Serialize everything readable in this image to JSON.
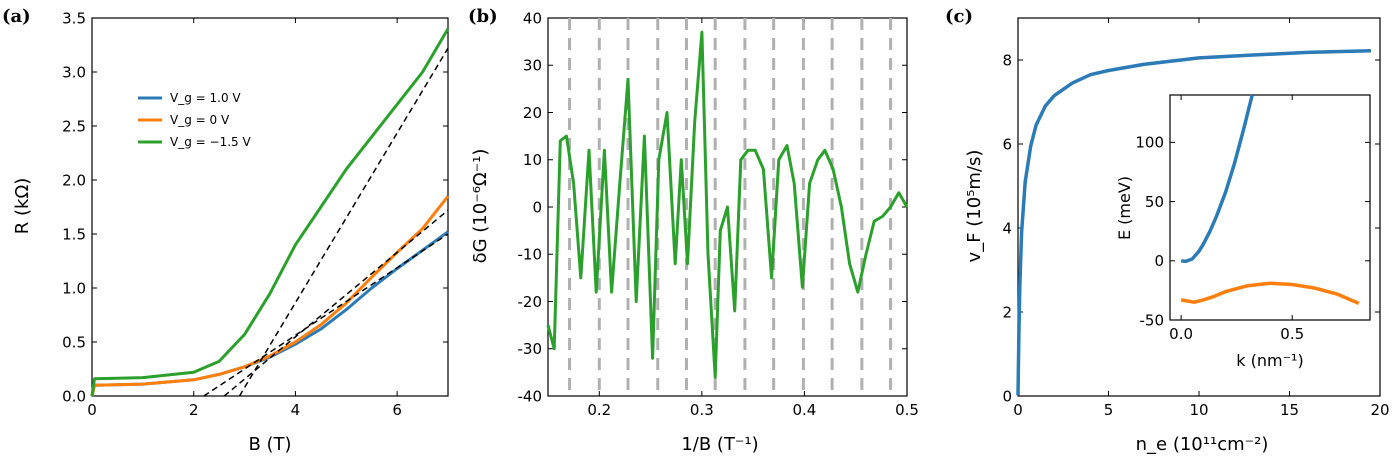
{
  "colors": {
    "blue": "#2c7bb6",
    "orange": "#ff7f0e",
    "green": "#2ca02c",
    "dashed": "#000000",
    "vline": "#b0b0b0"
  },
  "chart_data": [
    {
      "panel_label": "(a)",
      "type": "line",
      "xlabel": "B (T)",
      "ylabel": "R (kΩ)",
      "xlim": [
        0,
        7
      ],
      "ylim": [
        0,
        3.5
      ],
      "xticks": [
        0,
        2,
        4,
        6
      ],
      "yticks": [
        0.0,
        0.5,
        1.0,
        1.5,
        2.0,
        2.5,
        3.0,
        3.5
      ],
      "legend_location": "upper-left",
      "series": [
        {
          "name": "V_g = 1.0 V",
          "color": "blue",
          "x": [
            0,
            0.05,
            1,
            2,
            2.5,
            3,
            3.5,
            4,
            4.5,
            5,
            5.5,
            6,
            6.5,
            7
          ],
          "y": [
            0,
            0.1,
            0.11,
            0.15,
            0.2,
            0.27,
            0.36,
            0.48,
            0.62,
            0.8,
            1.0,
            1.18,
            1.35,
            1.52
          ]
        },
        {
          "name": "V_g = 0 V",
          "color": "orange",
          "x": [
            0,
            0.05,
            1,
            2,
            2.5,
            3,
            3.5,
            4,
            4.5,
            5,
            5.5,
            6,
            6.5,
            7
          ],
          "y": [
            0,
            0.1,
            0.11,
            0.15,
            0.2,
            0.27,
            0.37,
            0.5,
            0.66,
            0.86,
            1.1,
            1.33,
            1.55,
            1.85
          ]
        },
        {
          "name": "V_g = −1.5 V",
          "color": "green",
          "x": [
            0,
            0.05,
            1,
            2,
            2.5,
            3,
            3.5,
            4,
            4.5,
            5,
            5.5,
            6,
            6.5,
            7
          ],
          "y": [
            0,
            0.16,
            0.17,
            0.22,
            0.32,
            0.57,
            0.95,
            1.4,
            1.75,
            2.1,
            2.4,
            2.7,
            3.0,
            3.4
          ]
        }
      ],
      "fit_lines": [
        {
          "x": [
            2.2,
            7
          ],
          "y": [
            0,
            1.5
          ]
        },
        {
          "x": [
            2.6,
            7
          ],
          "y": [
            0,
            1.72
          ]
        },
        {
          "x": [
            2.9,
            7
          ],
          "y": [
            0,
            3.22
          ]
        }
      ]
    },
    {
      "panel_label": "(b)",
      "type": "line",
      "xlabel": "1/B (T⁻¹)",
      "ylabel": "δG (10⁻⁶Ω⁻¹)",
      "xlim": [
        0.15,
        0.5
      ],
      "ylim": [
        -40,
        40
      ],
      "xticks": [
        0.2,
        0.3,
        0.4,
        0.5
      ],
      "yticks": [
        -40,
        -30,
        -20,
        -10,
        0,
        10,
        20,
        30,
        40
      ],
      "series": [
        {
          "color": "green",
          "x": [
            0.15,
            0.156,
            0.162,
            0.168,
            0.175,
            0.182,
            0.19,
            0.197,
            0.205,
            0.212,
            0.22,
            0.228,
            0.236,
            0.244,
            0.252,
            0.258,
            0.266,
            0.274,
            0.28,
            0.286,
            0.293,
            0.3,
            0.306,
            0.313,
            0.318,
            0.325,
            0.332,
            0.338,
            0.345,
            0.352,
            0.36,
            0.368,
            0.375,
            0.383,
            0.39,
            0.398,
            0.405,
            0.413,
            0.42,
            0.428,
            0.436,
            0.444,
            0.452,
            0.46,
            0.468,
            0.476,
            0.484,
            0.492,
            0.5
          ],
          "y": [
            -25,
            -30,
            14,
            15,
            5,
            -15,
            12,
            -18,
            12,
            -18,
            5,
            27,
            -20,
            15,
            -32,
            10,
            20,
            -12,
            10,
            -12,
            18,
            37,
            -10,
            -36,
            -5,
            0,
            -22,
            10,
            12,
            12,
            8,
            -15,
            10,
            13,
            5,
            -17,
            5,
            10,
            12,
            8,
            0,
            -12,
            -18,
            -10,
            -3,
            -2,
            0,
            3,
            0
          ]
        }
      ],
      "vertical_lines_x": [
        0.171,
        0.2,
        0.228,
        0.257,
        0.285,
        0.313,
        0.342,
        0.37,
        0.399,
        0.427,
        0.456,
        0.484
      ]
    },
    {
      "panel_label": "(c)",
      "type": "line",
      "xlabel": "n_e (10¹¹cm⁻²)",
      "ylabel": "v_F (10⁵m/s)",
      "xlim": [
        0,
        20
      ],
      "ylim": [
        0,
        9
      ],
      "xticks": [
        0,
        5,
        10,
        15,
        20
      ],
      "yticks": [
        0,
        2,
        4,
        6,
        8
      ],
      "series": [
        {
          "color": "blue",
          "x": [
            0,
            0.05,
            0.1,
            0.2,
            0.4,
            0.7,
            1,
            1.5,
            2,
            3,
            4,
            5,
            7,
            10,
            13,
            16,
            19.5
          ],
          "y": [
            0.02,
            1.5,
            2.6,
            3.9,
            5.1,
            5.95,
            6.45,
            6.9,
            7.15,
            7.45,
            7.65,
            7.75,
            7.9,
            8.05,
            8.12,
            8.18,
            8.22
          ]
        }
      ],
      "inset": {
        "type": "line",
        "xlabel": "k (nm⁻¹)",
        "ylabel": "E (meV)",
        "xlim": [
          -0.05,
          0.85
        ],
        "ylim": [
          -50,
          140
        ],
        "xticks": [
          0.0,
          0.5
        ],
        "yticks": [
          -50,
          0,
          50,
          100
        ],
        "series": [
          {
            "color": "blue",
            "x": [
              0,
              0.02,
              0.05,
              0.08,
              0.1,
              0.13,
              0.16,
              0.2,
              0.24,
              0.28,
              0.32
            ],
            "y": [
              0,
              -0.5,
              1.5,
              8,
              14,
              25,
              38,
              58,
              82,
              110,
              140
            ]
          },
          {
            "color": "orange",
            "x": [
              0,
              0.03,
              0.06,
              0.1,
              0.15,
              0.2,
              0.3,
              0.4,
              0.5,
              0.6,
              0.7,
              0.8
            ],
            "y": [
              -33,
              -34,
              -35,
              -33,
              -30,
              -26,
              -21,
              -19,
              -20,
              -23,
              -28,
              -36
            ]
          }
        ]
      }
    }
  ]
}
